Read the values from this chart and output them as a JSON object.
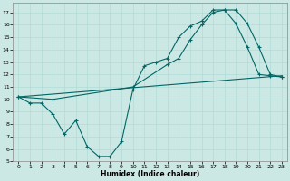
{
  "xlabel": "Humidex (Indice chaleur)",
  "bg_color": "#cce8e4",
  "line_color": "#006666",
  "marker": "+",
  "markersize": 3,
  "linewidth": 0.8,
  "xlim": [
    -0.5,
    23.5
  ],
  "ylim": [
    5,
    17.8
  ],
  "yticks": [
    5,
    6,
    7,
    8,
    9,
    10,
    11,
    12,
    13,
    14,
    15,
    16,
    17
  ],
  "xticks": [
    0,
    1,
    2,
    3,
    4,
    5,
    6,
    7,
    8,
    9,
    10,
    11,
    12,
    13,
    14,
    15,
    16,
    17,
    18,
    19,
    20,
    21,
    22,
    23
  ],
  "line1_x": [
    0,
    1,
    2,
    3,
    4,
    5,
    6,
    7,
    8,
    9,
    10,
    11,
    12,
    13,
    14,
    15,
    16,
    17,
    18,
    19,
    20,
    21,
    22,
    23
  ],
  "line1_y": [
    10.2,
    9.7,
    9.7,
    8.8,
    7.2,
    8.3,
    6.2,
    5.4,
    5.4,
    6.6,
    10.8,
    12.7,
    13.0,
    13.3,
    15.0,
    15.9,
    16.3,
    17.2,
    17.2,
    16.1,
    14.2,
    12.0,
    11.9,
    11.8
  ],
  "line2_x": [
    0,
    23
  ],
  "line2_y": [
    10.2,
    11.9
  ],
  "line3_x": [
    0,
    3,
    10,
    13,
    14,
    15,
    16,
    17,
    18,
    19,
    20,
    21,
    22,
    23
  ],
  "line3_y": [
    10.2,
    10.0,
    11.0,
    12.8,
    13.3,
    14.8,
    16.0,
    17.0,
    17.2,
    17.2,
    16.1,
    14.2,
    12.0,
    11.8
  ]
}
